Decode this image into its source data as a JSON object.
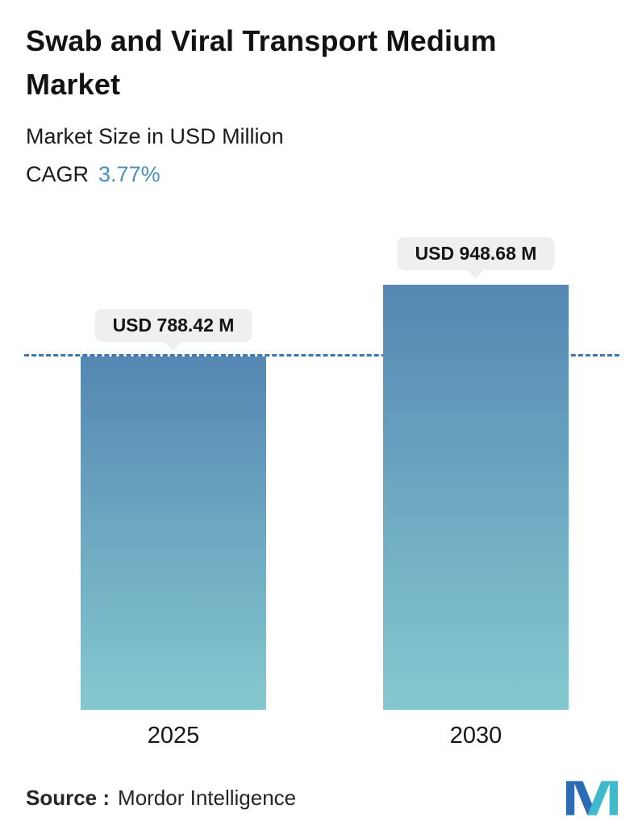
{
  "header": {
    "title": "Swab and Viral Transport Medium Market",
    "subtitle": "Market Size in USD Million",
    "cagr_label": "CAGR",
    "cagr_value": "3.77%"
  },
  "chart_data": {
    "type": "bar",
    "categories": [
      "2025",
      "2030"
    ],
    "values": [
      788.42,
      948.68
    ],
    "value_labels": [
      "USD 788.42 M",
      "USD 948.68 M"
    ],
    "title": "Swab and Viral Transport Medium Market",
    "xlabel": "",
    "ylabel": "Market Size in USD Million",
    "ylim": [
      0,
      1000
    ],
    "grid": false,
    "legend": "none",
    "reference_line_at": 788.42,
    "bar_gradient_top": "#5587b3",
    "bar_gradient_bottom": "#85c9cf",
    "reference_line_color": "#3c77b2",
    "badge_bg": "#edf0ee"
  },
  "footer": {
    "source_label": "Source :",
    "source_value": "Mordor Intelligence",
    "logo": "mordor-intelligence-logo"
  }
}
